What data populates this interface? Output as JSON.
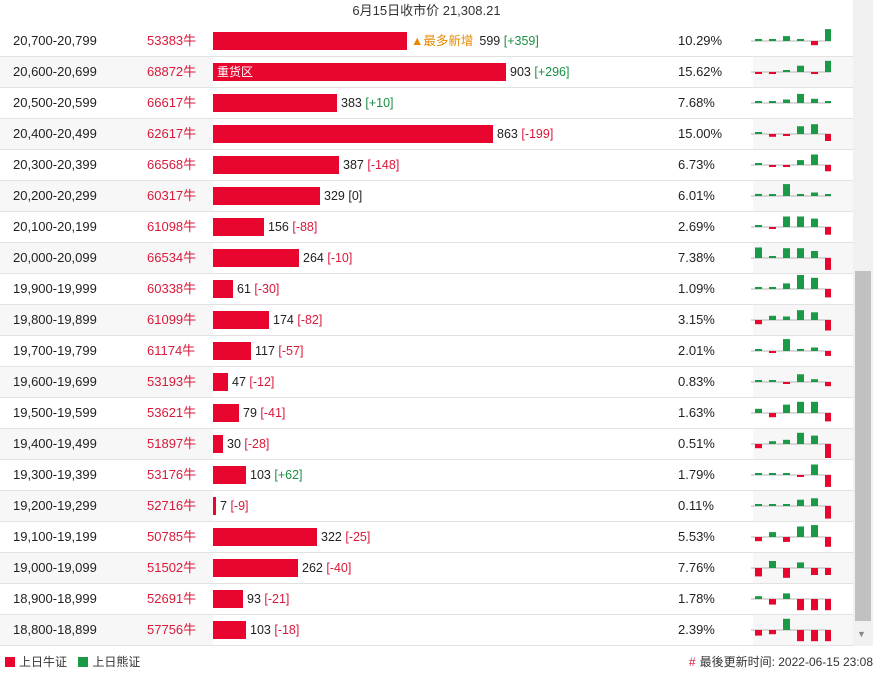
{
  "header": {
    "title": "6月15日收市价 21,308.21"
  },
  "colors": {
    "bull": "#e8062e",
    "bear": "#1a9a46",
    "neutral_line": "#b5b5b5"
  },
  "rows": [
    {
      "range": "20,700-20,799",
      "count": "53383牛",
      "value": 599,
      "change": "[+359]",
      "badge": "▲最多新增",
      "bar_label": "",
      "percent": "10.29%"
    },
    {
      "range": "20,600-20,699",
      "count": "68872牛",
      "value": 903,
      "change": "[+296]",
      "badge": "",
      "bar_label": "重货区",
      "percent": "15.62%"
    },
    {
      "range": "20,500-20,599",
      "count": "66617牛",
      "value": 383,
      "change": "[+10]",
      "badge": "",
      "bar_label": "",
      "percent": "7.68%"
    },
    {
      "range": "20,400-20,499",
      "count": "62617牛",
      "value": 863,
      "change": "[-199]",
      "badge": "",
      "bar_label": "",
      "percent": "15.00%"
    },
    {
      "range": "20,300-20,399",
      "count": "66568牛",
      "value": 387,
      "change": "[-148]",
      "badge": "",
      "bar_label": "",
      "percent": "6.73%"
    },
    {
      "range": "20,200-20,299",
      "count": "60317牛",
      "value": 329,
      "change": "[0]",
      "badge": "",
      "bar_label": "",
      "percent": "6.01%"
    },
    {
      "range": "20,100-20,199",
      "count": "61098牛",
      "value": 156,
      "change": "[-88]",
      "badge": "",
      "bar_label": "",
      "percent": "2.69%"
    },
    {
      "range": "20,000-20,099",
      "count": "66534牛",
      "value": 264,
      "change": "[-10]",
      "badge": "",
      "bar_label": "",
      "percent": "7.38%"
    },
    {
      "range": "19,900-19,999",
      "count": "60338牛",
      "value": 61,
      "change": "[-30]",
      "badge": "",
      "bar_label": "",
      "percent": "1.09%"
    },
    {
      "range": "19,800-19,899",
      "count": "61099牛",
      "value": 174,
      "change": "[-82]",
      "badge": "",
      "bar_label": "",
      "percent": "3.15%"
    },
    {
      "range": "19,700-19,799",
      "count": "61174牛",
      "value": 117,
      "change": "[-57]",
      "badge": "",
      "bar_label": "",
      "percent": "2.01%"
    },
    {
      "range": "19,600-19,699",
      "count": "53193牛",
      "value": 47,
      "change": "[-12]",
      "badge": "",
      "bar_label": "",
      "percent": "0.83%"
    },
    {
      "range": "19,500-19,599",
      "count": "53621牛",
      "value": 79,
      "change": "[-41]",
      "badge": "",
      "bar_label": "",
      "percent": "1.63%"
    },
    {
      "range": "19,400-19,499",
      "count": "51897牛",
      "value": 30,
      "change": "[-28]",
      "badge": "",
      "bar_label": "",
      "percent": "0.51%"
    },
    {
      "range": "19,300-19,399",
      "count": "53176牛",
      "value": 103,
      "change": "[+62]",
      "badge": "",
      "bar_label": "",
      "percent": "1.79%"
    },
    {
      "range": "19,200-19,299",
      "count": "52716牛",
      "value": 7,
      "change": "[-9]",
      "badge": "",
      "bar_label": "",
      "percent": "0.11%"
    },
    {
      "range": "19,100-19,199",
      "count": "50785牛",
      "value": 322,
      "change": "[-25]",
      "badge": "",
      "bar_label": "",
      "percent": "5.53%"
    },
    {
      "range": "19,000-19,099",
      "count": "51502牛",
      "value": 262,
      "change": "[-40]",
      "badge": "",
      "bar_label": "",
      "percent": "7.76%"
    },
    {
      "range": "18,900-18,999",
      "count": "52691牛",
      "value": 93,
      "change": "[-21]",
      "badge": "",
      "bar_label": "",
      "percent": "1.78%"
    },
    {
      "range": "18,800-18,899",
      "count": "57756牛",
      "value": 103,
      "change": "[-18]",
      "badge": "",
      "bar_label": "",
      "percent": "2.39%"
    }
  ],
  "sparks": [
    [
      0.05,
      0.05,
      0.35,
      0,
      -0.3,
      0.85
    ],
    [
      -0.05,
      -0.05,
      0.1,
      0.45,
      -0.1,
      0.8
    ],
    [
      0.05,
      0.05,
      0.25,
      0.65,
      0.3,
      0.05
    ],
    [
      0,
      -0.2,
      -0.1,
      0.55,
      0.7,
      -0.5
    ],
    [
      0,
      -0.05,
      -0.05,
      0.35,
      0.75,
      -0.45
    ],
    [
      0.15,
      0,
      0.85,
      0.05,
      0.25,
      0
    ],
    [
      0.1,
      -0.05,
      0.75,
      0.75,
      0.6,
      -0.55
    ],
    [
      0.75,
      0.05,
      0.7,
      0.7,
      0.5,
      -0.85
    ],
    [
      0,
      0.1,
      0.4,
      1.0,
      0.8,
      -0.6
    ],
    [
      -0.3,
      0.3,
      0.25,
      0.7,
      0.55,
      -0.75
    ],
    [
      0.05,
      -0.05,
      0.85,
      0.1,
      0.25,
      -0.35
    ],
    [
      0,
      0.05,
      -0.1,
      0.55,
      0.2,
      -0.3
    ],
    [
      0.3,
      -0.3,
      0.6,
      0.8,
      0.8,
      -0.6
    ],
    [
      -0.3,
      0.2,
      0.3,
      0.8,
      0.6,
      -1.0
    ],
    [
      0.05,
      0.05,
      0,
      -0.1,
      0.75,
      -0.85
    ],
    [
      0,
      0,
      0,
      0.45,
      0.55,
      -0.9
    ],
    [
      -0.3,
      0.35,
      -0.35,
      0.75,
      0.85,
      -0.7
    ],
    [
      -0.6,
      0.5,
      -0.7,
      0.4,
      -0.5,
      -0.5
    ],
    [
      0.2,
      -0.4,
      0.4,
      -0.8,
      -0.8,
      -0.8
    ],
    [
      -0.4,
      -0.3,
      0.8,
      -0.8,
      -0.8,
      -0.8
    ]
  ],
  "legend": {
    "bull": "上日牛证",
    "bear": "上日熊证"
  },
  "update": {
    "label": "最後更新时间: 2022-06-15 23:08"
  }
}
